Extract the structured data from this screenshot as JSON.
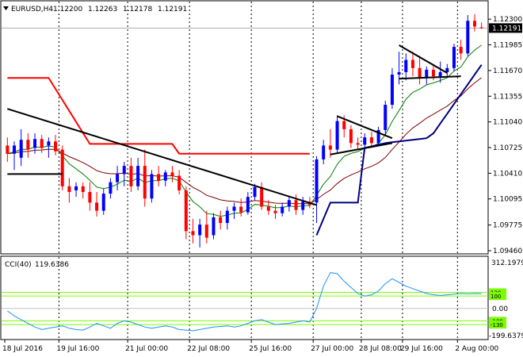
{
  "header": {
    "symbol": "EURUSD,H4",
    "open": "1.12200",
    "high": "1.12263",
    "low": "1.12178",
    "close": "1.12191"
  },
  "indicator": {
    "name": "CCI(40)",
    "value": "119.6386",
    "scale_max": "312.1979",
    "scale_min": "-199.6379",
    "level_labels": [
      "130",
      "100",
      "0.00",
      "-100",
      "-130"
    ]
  },
  "colors": {
    "bull_candle": "#0000ff",
    "bear_candle": "#ff0000",
    "ema_fast": "#008000",
    "ema_slow": "#800000",
    "stop_line": "#ff0000",
    "channel_line": "#000080",
    "trend_line": "#000000",
    "cci_line": "#1e90ff",
    "cci_levels": "#7cfc00"
  },
  "chart_data": {
    "type": "candlestick",
    "title": "EURUSD,H4",
    "price_axis_labels": [
      "1.12300",
      "1.11985",
      "1.11670",
      "1.11355",
      "1.11040",
      "1.10725",
      "1.10410",
      "1.10095",
      "1.09775",
      "1.09460"
    ],
    "current_price_label": "1.12191",
    "ylim": [
      1.0946,
      1.1236
    ],
    "x_labels": [
      "18 Jul 2016",
      "19 Jul 16:00",
      "21 Jul 00:00",
      "22 Jul 08:00",
      "25 Jul 16:00",
      "27 Jul 00:00",
      "28 Jul 08:00",
      "29 Jul 16:00",
      "2 Aug 00:00"
    ],
    "candles": [
      {
        "o": 1.1075,
        "h": 1.1085,
        "l": 1.1055,
        "c": 1.1065
      },
      {
        "o": 1.1065,
        "h": 1.108,
        "l": 1.1045,
        "c": 1.1075
      },
      {
        "o": 1.106,
        "h": 1.1095,
        "l": 1.105,
        "c": 1.1082
      },
      {
        "o": 1.1082,
        "h": 1.109,
        "l": 1.106,
        "c": 1.107
      },
      {
        "o": 1.1072,
        "h": 1.109,
        "l": 1.1065,
        "c": 1.1083
      },
      {
        "o": 1.1083,
        "h": 1.1088,
        "l": 1.1066,
        "c": 1.1072
      },
      {
        "o": 1.1075,
        "h": 1.1085,
        "l": 1.106,
        "c": 1.108
      },
      {
        "o": 1.108,
        "h": 1.1088,
        "l": 1.1063,
        "c": 1.1068
      },
      {
        "o": 1.107,
        "h": 1.1075,
        "l": 1.102,
        "c": 1.1025
      },
      {
        "o": 1.1025,
        "h": 1.1035,
        "l": 1.1005,
        "c": 1.1018
      },
      {
        "o": 1.102,
        "h": 1.103,
        "l": 1.1012,
        "c": 1.1025
      },
      {
        "o": 1.1025,
        "h": 1.103,
        "l": 1.101,
        "c": 1.1018
      },
      {
        "o": 1.1018,
        "h": 1.103,
        "l": 1.0995,
        "c": 1.1005
      },
      {
        "o": 1.1005,
        "h": 1.1018,
        "l": 1.0988,
        "c": 1.0995
      },
      {
        "o": 1.0995,
        "h": 1.1022,
        "l": 1.099,
        "c": 1.1016
      },
      {
        "o": 1.1016,
        "h": 1.1035,
        "l": 1.101,
        "c": 1.103
      },
      {
        "o": 1.103,
        "h": 1.105,
        "l": 1.102,
        "c": 1.104
      },
      {
        "o": 1.104,
        "h": 1.1055,
        "l": 1.1025,
        "c": 1.105
      },
      {
        "o": 1.105,
        "h": 1.106,
        "l": 1.1018,
        "c": 1.1025
      },
      {
        "o": 1.1025,
        "h": 1.106,
        "l": 1.102,
        "c": 1.105
      },
      {
        "o": 1.105,
        "h": 1.107,
        "l": 1.1,
        "c": 1.101
      },
      {
        "o": 1.101,
        "h": 1.1045,
        "l": 1.1005,
        "c": 1.104
      },
      {
        "o": 1.104,
        "h": 1.105,
        "l": 1.1025,
        "c": 1.1032
      },
      {
        "o": 1.1032,
        "h": 1.1045,
        "l": 1.1025,
        "c": 1.1042
      },
      {
        "o": 1.1042,
        "h": 1.105,
        "l": 1.103,
        "c": 1.1038
      },
      {
        "o": 1.1038,
        "h": 1.1045,
        "l": 1.1015,
        "c": 1.102
      },
      {
        "o": 1.102,
        "h": 1.1025,
        "l": 1.096,
        "c": 1.097
      },
      {
        "o": 1.097,
        "h": 1.0985,
        "l": 1.0955,
        "c": 1.0965
      },
      {
        "o": 1.0965,
        "h": 1.0985,
        "l": 1.095,
        "c": 1.0978
      },
      {
        "o": 1.0978,
        "h": 1.0995,
        "l": 1.0955,
        "c": 1.0962
      },
      {
        "o": 1.0965,
        "h": 1.0992,
        "l": 1.096,
        "c": 1.0987
      },
      {
        "o": 1.0987,
        "h": 1.0995,
        "l": 1.0972,
        "c": 1.098
      },
      {
        "o": 1.098,
        "h": 1.1,
        "l": 1.0972,
        "c": 1.0995
      },
      {
        "o": 1.0995,
        "h": 1.1005,
        "l": 1.0985,
        "c": 1.1
      },
      {
        "o": 1.1,
        "h": 1.101,
        "l": 1.0988,
        "c": 1.0993
      },
      {
        "o": 1.0993,
        "h": 1.1018,
        "l": 1.099,
        "c": 1.1012
      },
      {
        "o": 1.1012,
        "h": 1.1028,
        "l": 1.1008,
        "c": 1.1024
      },
      {
        "o": 1.1024,
        "h": 1.103,
        "l": 1.0996,
        "c": 1.1
      },
      {
        "o": 1.1,
        "h": 1.1008,
        "l": 1.099,
        "c": 1.0995
      },
      {
        "o": 1.0995,
        "h": 1.1002,
        "l": 1.0985,
        "c": 1.0992
      },
      {
        "o": 1.0992,
        "h": 1.1005,
        "l": 1.0988,
        "c": 1.1
      },
      {
        "o": 1.1,
        "h": 1.1012,
        "l": 1.0994,
        "c": 1.1008
      },
      {
        "o": 1.1008,
        "h": 1.1015,
        "l": 1.099,
        "c": 1.0996
      },
      {
        "o": 1.0996,
        "h": 1.1012,
        "l": 1.099,
        "c": 1.1006
      },
      {
        "o": 1.1006,
        "h": 1.1012,
        "l": 1.0998,
        "c": 1.1002
      },
      {
        "o": 1.1005,
        "h": 1.1062,
        "l": 1.098,
        "c": 1.1058
      },
      {
        "o": 1.1058,
        "h": 1.1082,
        "l": 1.1052,
        "c": 1.1075
      },
      {
        "o": 1.1075,
        "h": 1.1095,
        "l": 1.106,
        "c": 1.107
      },
      {
        "o": 1.107,
        "h": 1.1112,
        "l": 1.1065,
        "c": 1.1105
      },
      {
        "o": 1.1105,
        "h": 1.1112,
        "l": 1.1085,
        "c": 1.1095
      },
      {
        "o": 1.1095,
        "h": 1.11,
        "l": 1.1072,
        "c": 1.1078
      },
      {
        "o": 1.1078,
        "h": 1.1085,
        "l": 1.107,
        "c": 1.1076
      },
      {
        "o": 1.1076,
        "h": 1.109,
        "l": 1.1068,
        "c": 1.1085
      },
      {
        "o": 1.1085,
        "h": 1.1092,
        "l": 1.1072,
        "c": 1.1078
      },
      {
        "o": 1.1078,
        "h": 1.1098,
        "l": 1.1075,
        "c": 1.1094
      },
      {
        "o": 1.1094,
        "h": 1.113,
        "l": 1.1088,
        "c": 1.1125
      },
      {
        "o": 1.1125,
        "h": 1.117,
        "l": 1.112,
        "c": 1.1162
      },
      {
        "o": 1.1162,
        "h": 1.119,
        "l": 1.115,
        "c": 1.1165
      },
      {
        "o": 1.1165,
        "h": 1.1188,
        "l": 1.1155,
        "c": 1.118
      },
      {
        "o": 1.118,
        "h": 1.119,
        "l": 1.116,
        "c": 1.117
      },
      {
        "o": 1.117,
        "h": 1.1185,
        "l": 1.115,
        "c": 1.1158
      },
      {
        "o": 1.1158,
        "h": 1.1172,
        "l": 1.115,
        "c": 1.1168
      },
      {
        "o": 1.1168,
        "h": 1.1175,
        "l": 1.1155,
        "c": 1.116
      },
      {
        "o": 1.116,
        "h": 1.1178,
        "l": 1.1152,
        "c": 1.1165
      },
      {
        "o": 1.1165,
        "h": 1.1175,
        "l": 1.1158,
        "c": 1.117
      },
      {
        "o": 1.117,
        "h": 1.12,
        "l": 1.1166,
        "c": 1.1196
      },
      {
        "o": 1.1196,
        "h": 1.1205,
        "l": 1.118,
        "c": 1.1188
      },
      {
        "o": 1.1188,
        "h": 1.1235,
        "l": 1.1185,
        "c": 1.1228
      },
      {
        "o": 1.1228,
        "h": 1.1236,
        "l": 1.1215,
        "c": 1.1221
      },
      {
        "o": 1.122,
        "h": 1.1226,
        "l": 1.1218,
        "c": 1.1219
      }
    ],
    "cci_ylim": [
      -199.6379,
      312.1979
    ],
    "cci_levels": [
      130,
      100,
      0,
      -100,
      -130
    ],
    "cci_values": [
      -20,
      -60,
      -90,
      -120,
      -150,
      -170,
      -160,
      -150,
      -140,
      -160,
      -170,
      -175,
      -150,
      -120,
      -140,
      -160,
      -120,
      -100,
      -110,
      -130,
      -150,
      -160,
      -150,
      -140,
      -150,
      -170,
      -175,
      -180,
      -170,
      -160,
      -150,
      -145,
      -140,
      -150,
      -140,
      -120,
      -100,
      -90,
      -110,
      -130,
      -125,
      -120,
      -110,
      -100,
      -110,
      0,
      180,
      290,
      280,
      220,
      170,
      120,
      100,
      110,
      140,
      200,
      240,
      210,
      180,
      160,
      140,
      120,
      110,
      105,
      110,
      115,
      120,
      118,
      120,
      119.6386
    ]
  }
}
